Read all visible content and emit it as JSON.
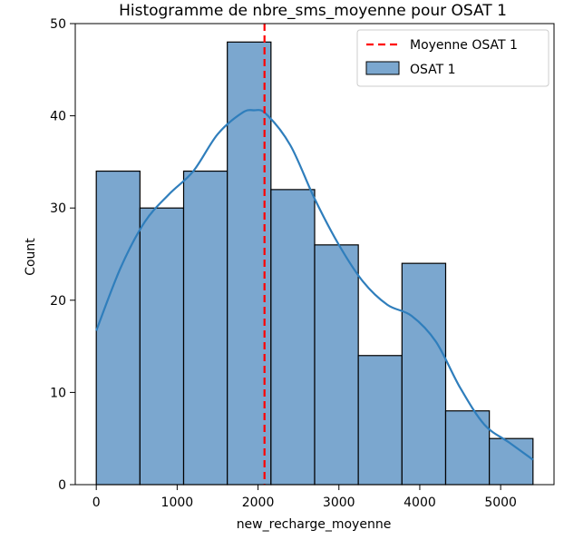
{
  "chart_data": {
    "type": "bar",
    "title": "Histogramme de nbre_sms_moyenne pour OSAT 1",
    "xlabel": "new_recharge_moyenne",
    "ylabel": "Count",
    "xlim": [
      -260,
      5660
    ],
    "ylim": [
      0,
      50
    ],
    "xticks": [
      0,
      1000,
      2000,
      3000,
      4000,
      5000
    ],
    "yticks": [
      0,
      10,
      20,
      30,
      40,
      50
    ],
    "bins": [
      {
        "x0": 0,
        "x1": 540,
        "count": 34
      },
      {
        "x0": 540,
        "x1": 1080,
        "count": 30
      },
      {
        "x0": 1080,
        "x1": 1620,
        "count": 34
      },
      {
        "x0": 1620,
        "x1": 2160,
        "count": 48
      },
      {
        "x0": 2160,
        "x1": 2700,
        "count": 32
      },
      {
        "x0": 2700,
        "x1": 3240,
        "count": 26
      },
      {
        "x0": 3240,
        "x1": 3780,
        "count": 14
      },
      {
        "x0": 3780,
        "x1": 4320,
        "count": 24
      },
      {
        "x0": 4320,
        "x1": 4860,
        "count": 8
      },
      {
        "x0": 4860,
        "x1": 5400,
        "count": 5
      }
    ],
    "kde": {
      "x": [
        0,
        300,
        600,
        900,
        1200,
        1500,
        1800,
        1950,
        2100,
        2400,
        2700,
        3000,
        3300,
        3600,
        3900,
        4200,
        4500,
        4800,
        5100,
        5400
      ],
      "y": [
        16.7,
        23.5,
        28.5,
        31.5,
        34,
        38,
        40.3,
        40.6,
        40.2,
        36.8,
        31,
        26,
        22,
        19.5,
        18.3,
        15.5,
        10.5,
        6.5,
        4.6,
        2.7
      ]
    },
    "mean_line": {
      "x": 2080,
      "label": "Moyenne OSAT 1",
      "color": "#ff0000"
    },
    "series": [
      {
        "name": "OSAT 1",
        "fill": "#7ba7cf",
        "edge": "#000000",
        "line_color": "#2f7ebc"
      }
    ],
    "grid": false,
    "legend_position": "upper right"
  }
}
